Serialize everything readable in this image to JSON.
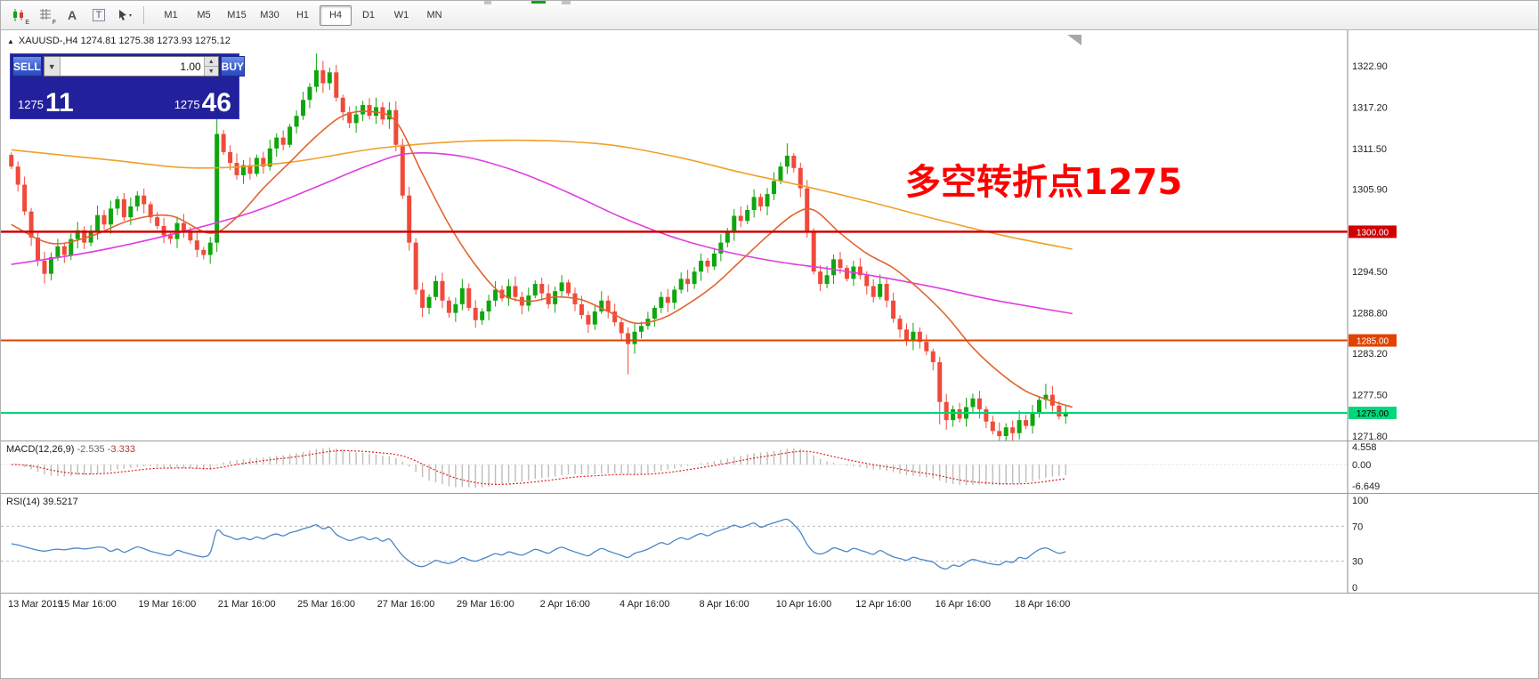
{
  "toolbar": {
    "icons": [
      "candlestick-chart-icon",
      "indicator-grid-icon",
      "text-annotation-icon",
      "text-box-icon",
      "drawing-tools-dropdown-icon"
    ],
    "timeframes": [
      {
        "label": "M1",
        "active": false
      },
      {
        "label": "M5",
        "active": false
      },
      {
        "label": "M15",
        "active": false
      },
      {
        "label": "M30",
        "active": false
      },
      {
        "label": "H1",
        "active": false
      },
      {
        "label": "H4",
        "active": true
      },
      {
        "label": "D1",
        "active": false
      },
      {
        "label": "W1",
        "active": false
      },
      {
        "label": "MN",
        "active": false
      }
    ]
  },
  "chart": {
    "symbol_line": "XAUUSD-,H4   1274.81 1275.38 1273.93 1275.12",
    "annotation": {
      "text": "多空转折点1275",
      "color": "#fe0000"
    },
    "trade_panel": {
      "sell_label": "SELL",
      "buy_label": "BUY",
      "lot": "1.00",
      "sell_price_small": "1275",
      "sell_price_big": "11",
      "buy_price_small": "1275",
      "buy_price_big": "46"
    }
  },
  "indicators": {
    "macd": {
      "name": "MACD(12,26,9)",
      "value_main": "-2.535",
      "value_signal": "-3.333",
      "axis": [
        "4.558",
        "0.00",
        "-6.649"
      ]
    },
    "rsi": {
      "name": "RSI(14)",
      "value": "39.5217",
      "axis": [
        "100",
        "70",
        "30",
        "0"
      ],
      "period": 14
    }
  },
  "chart_data": {
    "type": "candlestick",
    "symbol": "XAUUSD-",
    "timeframe": "H4",
    "header_ohlc": {
      "open": 1274.81,
      "high": 1275.38,
      "low": 1273.93,
      "close": 1275.12
    },
    "price_axis": [
      1322.9,
      1317.2,
      1311.5,
      1305.9,
      1294.5,
      1288.8,
      1283.2,
      1277.5,
      1271.8
    ],
    "hlines": [
      {
        "price": 1300.0,
        "label": "1300.00",
        "color": "#d10000",
        "text": "#ffffff",
        "width": 2.5
      },
      {
        "price": 1285.0,
        "label": "1285.00",
        "color": "#e04300",
        "text": "#ffffff",
        "width": 2
      },
      {
        "price": 1275.0,
        "label": "1275.00",
        "color": "#00d77a",
        "text": "#000000",
        "width": 2
      }
    ],
    "colors": {
      "up": "#0ea60e",
      "down": "#f04a3a",
      "ma_orange": "#f0a028",
      "ma_magenta": "#e03ce0",
      "ma_fast": "#e2642e",
      "macd_hist": "#bdbdbd",
      "macd_signal": "#dd2222",
      "rsi_line": "#4a86c8"
    },
    "open_first": 1310.6,
    "closes": [
      1309.0,
      1306.5,
      1302.8,
      1299.2,
      1296.0,
      1294.2,
      1296.5,
      1298.0,
      1296.8,
      1299.0,
      1300.2,
      1298.5,
      1300.0,
      1302.3,
      1301.0,
      1303.2,
      1304.5,
      1302.0,
      1303.5,
      1305.0,
      1303.8,
      1302.0,
      1300.8,
      1299.5,
      1299.0,
      1301.2,
      1300.0,
      1298.8,
      1297.5,
      1296.8,
      1298.5,
      1313.5,
      1311.0,
      1309.5,
      1307.8,
      1309.2,
      1308.0,
      1310.2,
      1309.0,
      1311.5,
      1313.0,
      1312.0,
      1314.5,
      1316.0,
      1318.2,
      1320.0,
      1322.3,
      1320.5,
      1322.0,
      1318.5,
      1316.5,
      1315.0,
      1316.2,
      1317.5,
      1316.0,
      1317.2,
      1315.5,
      1316.8,
      1312.0,
      1305.0,
      1298.5,
      1292.0,
      1289.5,
      1291.0,
      1293.2,
      1290.5,
      1288.8,
      1290.0,
      1292.2,
      1289.5,
      1287.8,
      1289.0,
      1290.5,
      1292.0,
      1290.8,
      1292.5,
      1291.0,
      1289.8,
      1291.2,
      1292.8,
      1291.5,
      1290.0,
      1291.8,
      1293.0,
      1291.5,
      1290.0,
      1288.5,
      1287.2,
      1289.0,
      1290.5,
      1289.0,
      1287.5,
      1286.0,
      1284.5,
      1286.2,
      1287.0,
      1288.0,
      1289.5,
      1291.0,
      1290.2,
      1292.0,
      1293.5,
      1292.8,
      1294.5,
      1296.0,
      1295.2,
      1297.0,
      1298.5,
      1300.0,
      1302.2,
      1301.5,
      1303.0,
      1304.8,
      1303.5,
      1305.2,
      1307.0,
      1309.0,
      1310.5,
      1308.8,
      1306.0,
      1300.0,
      1294.5,
      1292.8,
      1294.0,
      1296.2,
      1295.0,
      1293.5,
      1295.2,
      1294.0,
      1292.5,
      1291.0,
      1292.8,
      1290.5,
      1288.0,
      1286.5,
      1285.0,
      1286.2,
      1284.8,
      1283.5,
      1282.0,
      1276.5,
      1274.0,
      1275.5,
      1274.2,
      1275.8,
      1277.0,
      1275.5,
      1273.8,
      1272.5,
      1271.8,
      1273.0,
      1272.2,
      1274.0,
      1273.2,
      1275.0,
      1276.8,
      1277.5,
      1276.0,
      1274.5,
      1275.12
    ],
    "wick_overrides": {
      "31": {
        "h": 1317.4,
        "l": 1297.2
      },
      "46": {
        "h": 1324.6
      },
      "58": {
        "h": 1318.0
      },
      "93": {
        "l": 1280.3
      },
      "117": {
        "h": 1312.2
      },
      "140": {
        "l": 1273.4
      },
      "149": {
        "l": 1270.4
      },
      "156": {
        "h": 1279.0
      }
    },
    "ma_orange": [
      [
        0,
        1311.3
      ],
      [
        14,
        1310.0
      ],
      [
        28,
        1308.8
      ],
      [
        42,
        1309.6
      ],
      [
        56,
        1311.6
      ],
      [
        72,
        1312.6
      ],
      [
        88,
        1312.2
      ],
      [
        100,
        1310.4
      ],
      [
        110,
        1308.2
      ],
      [
        120,
        1306.2
      ],
      [
        130,
        1304.0
      ],
      [
        140,
        1301.6
      ],
      [
        150,
        1299.4
      ],
      [
        160,
        1297.6
      ]
    ],
    "ma_magenta": [
      [
        0,
        1295.5
      ],
      [
        12,
        1297.2
      ],
      [
        24,
        1299.6
      ],
      [
        36,
        1302.6
      ],
      [
        46,
        1306.2
      ],
      [
        54,
        1309.2
      ],
      [
        60,
        1310.8
      ],
      [
        68,
        1310.4
      ],
      [
        76,
        1308.4
      ],
      [
        84,
        1305.4
      ],
      [
        92,
        1302.0
      ],
      [
        100,
        1299.2
      ],
      [
        108,
        1297.2
      ],
      [
        116,
        1295.8
      ],
      [
        124,
        1294.8
      ],
      [
        132,
        1293.6
      ],
      [
        140,
        1292.2
      ],
      [
        148,
        1290.6
      ],
      [
        160,
        1288.7
      ]
    ],
    "ma_fast": [
      [
        0,
        1301.0
      ],
      [
        6,
        1298.4
      ],
      [
        12,
        1299.4
      ],
      [
        18,
        1301.6
      ],
      [
        24,
        1302.2
      ],
      [
        30,
        1299.8
      ],
      [
        34,
        1302.0
      ],
      [
        38,
        1306.0
      ],
      [
        42,
        1309.6
      ],
      [
        46,
        1313.2
      ],
      [
        50,
        1316.0
      ],
      [
        54,
        1316.6
      ],
      [
        58,
        1315.2
      ],
      [
        62,
        1308.0
      ],
      [
        66,
        1301.0
      ],
      [
        70,
        1295.4
      ],
      [
        74,
        1291.4
      ],
      [
        78,
        1290.4
      ],
      [
        82,
        1291.0
      ],
      [
        86,
        1290.6
      ],
      [
        90,
        1289.0
      ],
      [
        94,
        1287.4
      ],
      [
        98,
        1288.0
      ],
      [
        102,
        1290.0
      ],
      [
        106,
        1292.6
      ],
      [
        110,
        1296.0
      ],
      [
        114,
        1299.4
      ],
      [
        118,
        1302.4
      ],
      [
        121,
        1303.0
      ],
      [
        125,
        1299.8
      ],
      [
        129,
        1297.0
      ],
      [
        133,
        1295.0
      ],
      [
        137,
        1292.0
      ],
      [
        141,
        1288.4
      ],
      [
        145,
        1284.0
      ],
      [
        149,
        1280.6
      ],
      [
        153,
        1278.0
      ],
      [
        157,
        1276.6
      ],
      [
        160,
        1275.8
      ]
    ],
    "time_labels": [
      "13 Mar 2019",
      "15 Mar 16:00",
      "19 Mar 16:00",
      "21 Mar 16:00",
      "25 Mar 16:00",
      "27 Mar 16:00",
      "29 Mar 16:00",
      "2 Apr 16:00",
      "4 Apr 16:00",
      "8 Apr 16:00",
      "10 Apr 16:00",
      "12 Apr 16:00",
      "16 Apr 16:00",
      "18 Apr 16:00"
    ],
    "x_label_every": 12,
    "macd_params": [
      12,
      26,
      9
    ]
  }
}
